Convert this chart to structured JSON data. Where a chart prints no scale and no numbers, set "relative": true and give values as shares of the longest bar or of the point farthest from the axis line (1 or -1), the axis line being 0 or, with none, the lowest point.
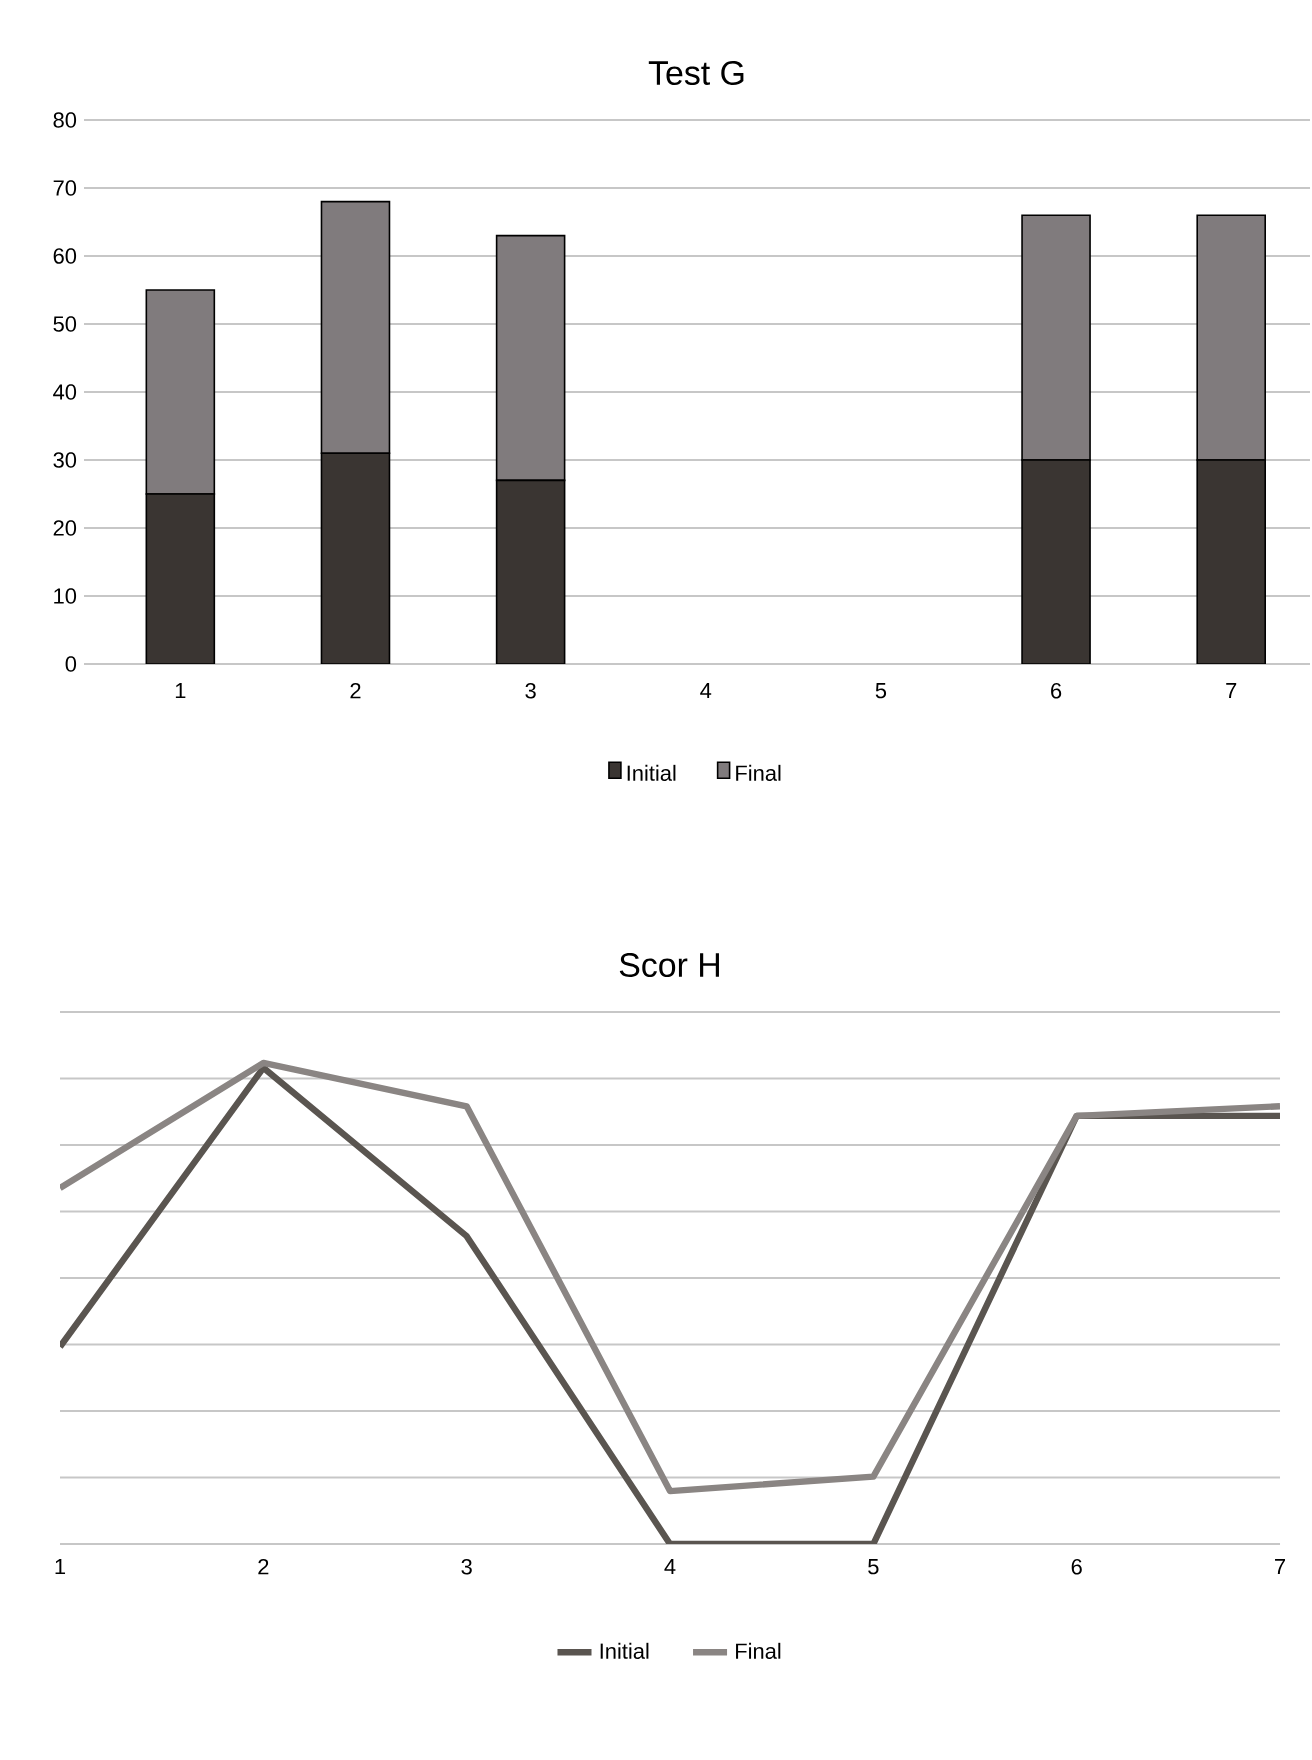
{
  "chart_data": [
    {
      "type": "bar",
      "title": "Test G",
      "stacked": true,
      "categories": [
        "1",
        "2",
        "3",
        "4",
        "5",
        "6",
        "7"
      ],
      "series": [
        {
          "name": "Initial",
          "color": "#3a3532",
          "values": [
            25,
            31,
            27,
            null,
            null,
            30,
            30
          ]
        },
        {
          "name": "Final",
          "color": "#807b7d",
          "values": [
            30,
            37,
            36,
            null,
            null,
            36,
            36
          ]
        }
      ],
      "ylim": [
        0,
        80
      ],
      "yticks": [
        0,
        10,
        20,
        30,
        40,
        50,
        60,
        70,
        80
      ],
      "grid": "y",
      "legend": "bottom"
    },
    {
      "type": "line",
      "title": "Scor H",
      "relative": true,
      "categories": [
        "1",
        "2",
        "3",
        "4",
        "5",
        "6",
        "7"
      ],
      "series": [
        {
          "name": "Initial",
          "color": "#5a5550",
          "values": [
            0.41,
            0.99,
            0.64,
            0,
            0,
            0.89,
            0.89
          ]
        },
        {
          "name": "Final",
          "color": "#8a8583",
          "values": [
            0.74,
            1,
            0.91,
            0.11,
            0.14,
            0.89,
            0.91
          ]
        }
      ],
      "grid": "y",
      "legend": "bottom"
    }
  ]
}
